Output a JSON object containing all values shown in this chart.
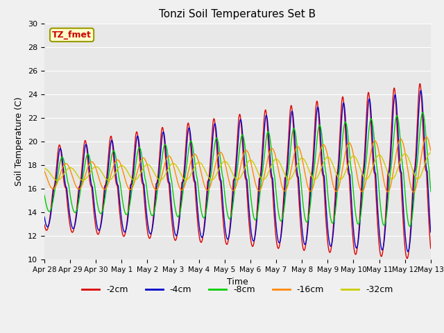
{
  "title": "Tonzi Soil Temperatures Set B",
  "xlabel": "Time",
  "ylabel": "Soil Temperature (C)",
  "ylim": [
    10,
    30
  ],
  "xlim": [
    0,
    360
  ],
  "legend_label": "TZ_fmet",
  "series_labels": [
    "-2cm",
    "-4cm",
    "-8cm",
    "-16cm",
    "-32cm"
  ],
  "series_colors": [
    "#dd0000",
    "#0000cc",
    "#00cc00",
    "#ff8800",
    "#cccc00"
  ],
  "tick_positions": [
    0,
    24,
    48,
    72,
    96,
    120,
    144,
    168,
    192,
    216,
    240,
    264,
    288,
    312,
    336,
    360
  ],
  "tick_labels": [
    "Apr 28",
    "Apr 29",
    "Apr 30",
    "May 1",
    "May 2",
    "May 3",
    "May 4",
    "May 5",
    "May 6",
    "May 7",
    "May 8",
    "May 9",
    "May 10",
    "May 11",
    "May 12",
    "May 13"
  ],
  "yticks": [
    10,
    12,
    14,
    16,
    18,
    20,
    22,
    24,
    26,
    28,
    30
  ],
  "plot_bg": "#e8e8e8",
  "fig_bg": "#f0f0f0"
}
